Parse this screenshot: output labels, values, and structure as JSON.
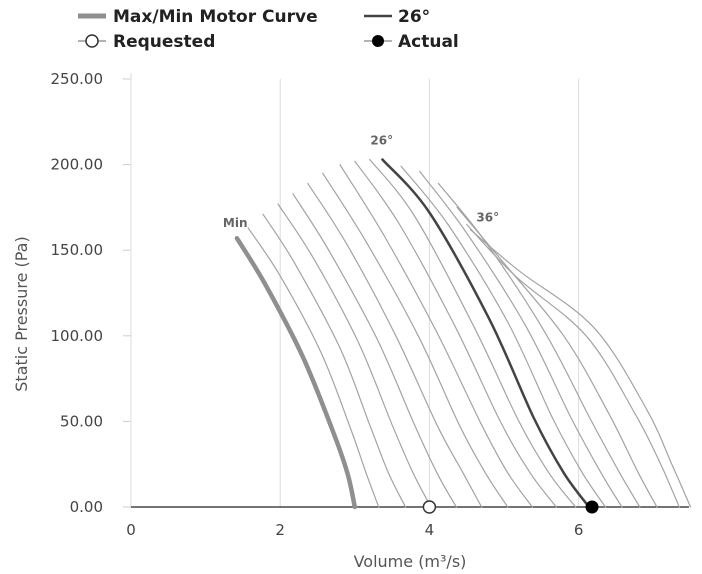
{
  "chart_data": {
    "type": "line",
    "xlabel": "Volume (m³/s)",
    "ylabel": "Static Pressure (Pa)",
    "xlim": [
      0,
      7.5
    ],
    "ylim": [
      0,
      250
    ],
    "x_ticks": [
      "0",
      "2",
      "4",
      "6"
    ],
    "x_tick_values": [
      0,
      2,
      4,
      6
    ],
    "y_ticks": [
      "0.00",
      "50.00",
      "100.00",
      "150.00",
      "200.00",
      "250.00"
    ],
    "y_tick_values": [
      0,
      50,
      100,
      150,
      200,
      250
    ],
    "grid": "vertical",
    "legend": {
      "placement": "top",
      "entries": [
        {
          "label": "Max/Min Motor Curve",
          "kind": "thick-line",
          "color": "#8f8f8f"
        },
        {
          "label": "26°",
          "kind": "line",
          "color": "#444444"
        },
        {
          "label": "Requested",
          "kind": "open-marker",
          "color": "#333333"
        },
        {
          "label": "Actual",
          "kind": "filled-marker",
          "color": "#000000"
        }
      ]
    },
    "curve_labels": {
      "min": "Min",
      "highlight": "26°",
      "max": "36°"
    },
    "series": [
      {
        "role": "min",
        "points": [
          [
            1.42,
            157
          ],
          [
            1.8,
            130
          ],
          [
            2.3,
            88
          ],
          [
            2.7,
            45
          ],
          [
            2.9,
            20
          ],
          [
            3.0,
            0
          ]
        ]
      },
      {
        "role": "blade",
        "points": [
          [
            1.57,
            163
          ],
          [
            2.0,
            135
          ],
          [
            2.55,
            90
          ],
          [
            2.95,
            45
          ],
          [
            3.15,
            20
          ],
          [
            3.32,
            0
          ]
        ]
      },
      {
        "role": "blade",
        "points": [
          [
            1.77,
            171
          ],
          [
            2.2,
            142
          ],
          [
            2.8,
            93
          ],
          [
            3.2,
            48
          ],
          [
            3.45,
            20
          ],
          [
            3.68,
            0
          ]
        ]
      },
      {
        "role": "blade",
        "points": [
          [
            1.97,
            177
          ],
          [
            2.45,
            145
          ],
          [
            3.05,
            96
          ],
          [
            3.5,
            48
          ],
          [
            3.78,
            20
          ],
          [
            4.02,
            0
          ]
        ]
      },
      {
        "role": "blade",
        "points": [
          [
            2.17,
            183
          ],
          [
            2.65,
            150
          ],
          [
            3.3,
            98
          ],
          [
            3.8,
            48
          ],
          [
            4.1,
            20
          ],
          [
            4.36,
            0
          ]
        ]
      },
      {
        "role": "blade",
        "points": [
          [
            2.37,
            189
          ],
          [
            2.9,
            153
          ],
          [
            3.55,
            100
          ],
          [
            4.1,
            48
          ],
          [
            4.45,
            20
          ],
          [
            4.7,
            0
          ]
        ]
      },
      {
        "role": "blade",
        "points": [
          [
            2.57,
            195
          ],
          [
            3.15,
            155
          ],
          [
            3.85,
            100
          ],
          [
            4.4,
            48
          ],
          [
            4.75,
            20
          ],
          [
            5.05,
            0
          ]
        ]
      },
      {
        "role": "blade",
        "points": [
          [
            2.8,
            200
          ],
          [
            3.4,
            158
          ],
          [
            4.1,
            102
          ],
          [
            4.7,
            48
          ],
          [
            5.05,
            20
          ],
          [
            5.38,
            0
          ]
        ]
      },
      {
        "role": "blade",
        "points": [
          [
            3.0,
            202
          ],
          [
            3.6,
            165
          ],
          [
            4.35,
            105
          ],
          [
            4.95,
            50
          ],
          [
            5.35,
            20
          ],
          [
            5.7,
            0
          ]
        ]
      },
      {
        "role": "blade",
        "points": [
          [
            3.2,
            203
          ],
          [
            3.8,
            170
          ],
          [
            4.6,
            105
          ],
          [
            5.2,
            50
          ],
          [
            5.6,
            20
          ],
          [
            5.96,
            0
          ]
        ]
      },
      {
        "role": "highlight",
        "points": [
          [
            3.37,
            203
          ],
          [
            4.0,
            172
          ],
          [
            4.8,
            110
          ],
          [
            5.4,
            52
          ],
          [
            5.8,
            20
          ],
          [
            6.14,
            0
          ]
        ]
      },
      {
        "role": "blade",
        "points": [
          [
            3.62,
            199
          ],
          [
            4.25,
            165
          ],
          [
            5.05,
            108
          ],
          [
            5.65,
            52
          ],
          [
            6.05,
            20
          ],
          [
            6.36,
            0
          ]
        ]
      },
      {
        "role": "blade",
        "points": [
          [
            3.87,
            196
          ],
          [
            4.5,
            160
          ],
          [
            5.3,
            105
          ],
          [
            5.9,
            52
          ],
          [
            6.3,
            20
          ],
          [
            6.58,
            0
          ]
        ]
      },
      {
        "role": "blade",
        "points": [
          [
            4.12,
            189
          ],
          [
            4.75,
            155
          ],
          [
            5.55,
            102
          ],
          [
            6.15,
            52
          ],
          [
            6.55,
            20
          ],
          [
            6.82,
            0
          ]
        ]
      },
      {
        "role": "blade",
        "points": [
          [
            4.37,
            175
          ],
          [
            4.95,
            145
          ],
          [
            5.8,
            100
          ],
          [
            6.4,
            55
          ],
          [
            6.8,
            20
          ],
          [
            7.05,
            0
          ]
        ]
      },
      {
        "role": "blade",
        "points": [
          [
            4.5,
            165
          ],
          [
            5.15,
            135
          ],
          [
            6.1,
            100
          ],
          [
            6.75,
            55
          ],
          [
            7.1,
            25
          ],
          [
            7.35,
            0
          ]
        ]
      },
      {
        "role": "max",
        "points": [
          [
            4.55,
            162
          ],
          [
            5.2,
            138
          ],
          [
            6.2,
            105
          ],
          [
            6.9,
            58
          ],
          [
            7.25,
            25
          ],
          [
            7.5,
            0
          ]
        ]
      }
    ],
    "requested": {
      "x": 4.0,
      "y": 0
    },
    "actual": {
      "x": 6.18,
      "y": 0
    }
  }
}
